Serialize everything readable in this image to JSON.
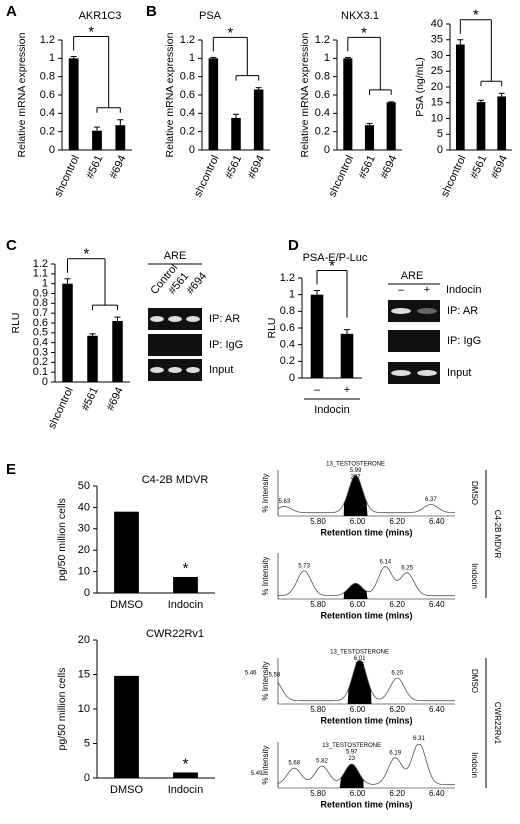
{
  "panels": [
    "A",
    "B",
    "C",
    "D",
    "E"
  ],
  "chart_data": [
    {
      "type": "bar",
      "title": "AKR1C3",
      "ylabel": "Relative mRNA expression",
      "categories": [
        "shcontrol",
        "#561",
        "#694"
      ],
      "values": [
        1.0,
        0.21,
        0.27
      ],
      "errors": [
        0.02,
        0.04,
        0.06
      ],
      "color": "#000000",
      "ylim": [
        0,
        1.2
      ],
      "yticks": [
        0,
        0.2,
        0.4,
        0.6,
        0.8,
        1,
        1.2
      ],
      "annotation": "*"
    },
    {
      "type": "bar",
      "title": "PSA",
      "ylabel": "Relative mRNA expression",
      "categories": [
        "shcontrol",
        "#561",
        "#694"
      ],
      "values": [
        1.0,
        0.35,
        0.66
      ],
      "errors": [
        0.01,
        0.04,
        0.02
      ],
      "color": "#000000",
      "ylim": [
        0,
        1.2
      ],
      "yticks": [
        0,
        0.2,
        0.4,
        0.6,
        0.8,
        1,
        1.2
      ],
      "annotation": "*"
    },
    {
      "type": "bar",
      "title": "NKX3.1",
      "ylabel": "Relative mRNA expression",
      "categories": [
        "shcontrol",
        "#561",
        "#694"
      ],
      "values": [
        1.0,
        0.27,
        0.52
      ],
      "errors": [
        0.01,
        0.02,
        0.005
      ],
      "color": "#000000",
      "ylim": [
        0,
        1.2
      ],
      "yticks": [
        0,
        0.2,
        0.4,
        0.6,
        0.8,
        1,
        1.2
      ],
      "annotation": "*"
    },
    {
      "type": "bar",
      "ylabel": "PSA (ng/mL)",
      "categories": [
        "shcontrol",
        "#561",
        "#694"
      ],
      "values": [
        33.5,
        15.2,
        17
      ],
      "errors": [
        1.5,
        0.6,
        1
      ],
      "color": "#000000",
      "ylim": [
        0,
        40
      ],
      "yticks": [
        0,
        5,
        10,
        15,
        20,
        25,
        30,
        35,
        40
      ],
      "annotation": "*"
    },
    {
      "type": "bar",
      "ylabel": "RLU",
      "categories": [
        "shcontrol",
        "#561",
        "#694"
      ],
      "values": [
        1.0,
        0.47,
        0.62
      ],
      "errors": [
        0.05,
        0.02,
        0.04
      ],
      "color": "#000000",
      "ylim": [
        0,
        1.2
      ],
      "yticks": [
        0,
        0.1,
        0.2,
        0.3,
        0.4,
        0.5,
        0.6,
        0.7,
        0.8,
        0.9,
        1,
        1.1,
        1.2
      ],
      "annotation": "*"
    },
    {
      "type": "bar",
      "title": "PSA-E/P-Luc",
      "ylabel": "RLU",
      "xlabel": "Indocin",
      "categories": [
        "–",
        "+"
      ],
      "values": [
        1.0,
        0.53
      ],
      "errors": [
        0.05,
        0.05
      ],
      "color": "#000000",
      "ylim": [
        0,
        1.2
      ],
      "yticks": [
        0,
        0.2,
        0.4,
        0.6,
        0.8,
        1,
        1.2
      ],
      "annotation": "*"
    },
    {
      "type": "bar",
      "title": "C4-2B MDVR",
      "ylabel": "pg/50 million cells",
      "categories": [
        "DMSO",
        "Indocin"
      ],
      "values": [
        38,
        7.5
      ],
      "color": "#000000",
      "ylim": [
        0,
        50
      ],
      "yticks": [
        0,
        10,
        20,
        30,
        40,
        50
      ],
      "annotation": "*"
    },
    {
      "type": "bar",
      "title": "CWR22Rv1",
      "ylabel": "pg/50 million cells",
      "categories": [
        "DMSO",
        "Indocin"
      ],
      "values": [
        14.8,
        0.8
      ],
      "color": "#000000",
      "ylim": [
        0,
        20
      ],
      "yticks": [
        0,
        5,
        10,
        15,
        20
      ],
      "annotation": "*"
    }
  ],
  "blots": [
    {
      "header": "ARE",
      "lanes": [
        "Control",
        "#561",
        "#694"
      ],
      "rows": [
        "IP: AR",
        "IP: IgG",
        "Input"
      ]
    },
    {
      "header": "ARE",
      "lanes": [
        "–",
        "+"
      ],
      "treatment": "Indocin",
      "rows": [
        "IP: AR",
        "IP: IgG",
        "Input"
      ]
    }
  ],
  "chromatograms": {
    "y_axis_label": "% Intensity",
    "x_axis_label": "Retention time (mins)",
    "xtick_labels": [
      "5.80",
      "6.00",
      "6.20",
      "6.40"
    ],
    "cell_lines": [
      "C4-2B MDVR",
      "CWR22Rv1"
    ],
    "traces": [
      {
        "condition": "DMSO",
        "peaks": [
          "5.63",
          "6.37"
        ],
        "compound": {
          "name": "13_TESTOSTERONE",
          "rt": "5.99",
          "area": "207"
        }
      },
      {
        "condition": "Indocin",
        "peaks": [
          "5.73",
          "6.14",
          "6.25"
        ]
      },
      {
        "condition": "DMSO",
        "peaks": [
          "5.46",
          "5.58",
          "6.20"
        ],
        "compound": {
          "name": "13_TESTOSTERONE",
          "rt": "6.01",
          "area": "116"
        }
      },
      {
        "condition": "Indocin",
        "peaks": [
          "5.49",
          "5.68",
          "5.82",
          "6.19",
          "6.31"
        ],
        "compound": {
          "name": "13_TESTOSTERONE",
          "rt": "5.97",
          "area": "23"
        }
      }
    ]
  }
}
